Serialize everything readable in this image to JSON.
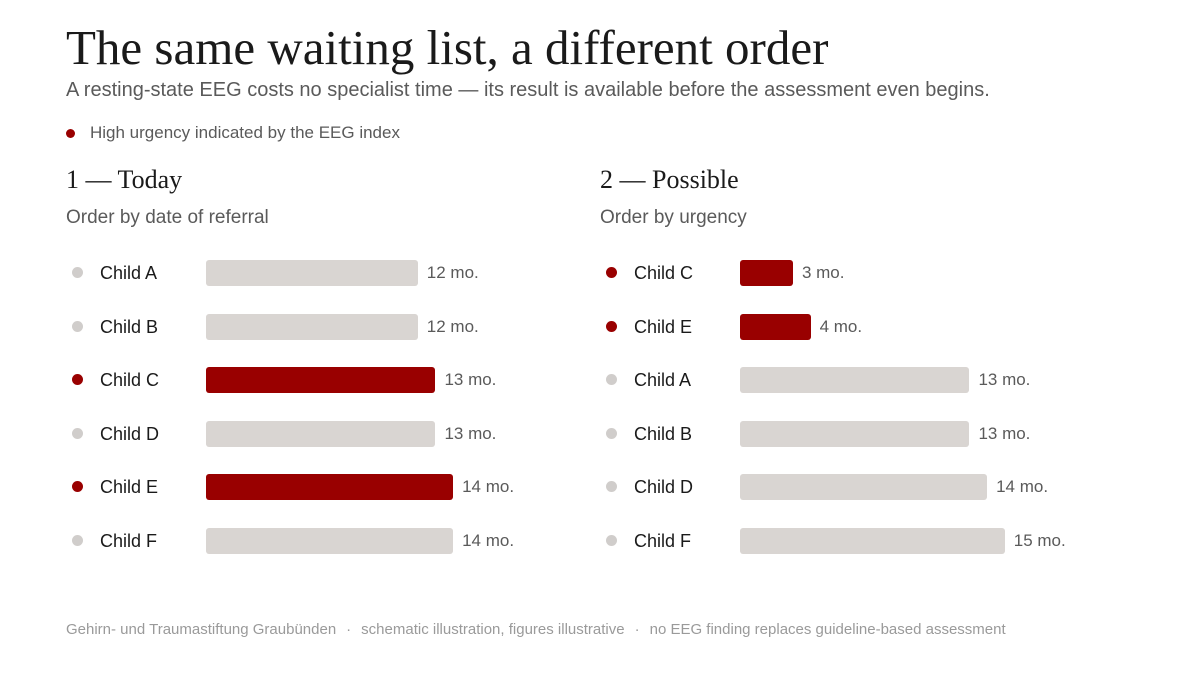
{
  "title": "The same waiting list, a different order",
  "subtitle": "A resting-state EEG costs no specialist time — its result is available before the assessment even begins.",
  "legend": {
    "label": "High urgency indicated by the EEG index",
    "color": "#990000"
  },
  "colors": {
    "urgent_bar": "#990000",
    "normal_bar": "#d9d5d2",
    "urgent_dot": "#990000",
    "normal_dot": "#d0cdcb"
  },
  "chart_data": [
    {
      "type": "bar",
      "orientation": "horizontal",
      "title": "1 — Today",
      "subtitle": "Order by date of referral",
      "unit": "mo.",
      "categories": [
        "Child A",
        "Child B",
        "Child C",
        "Child D",
        "Child E",
        "Child F"
      ],
      "values": [
        12,
        12,
        13,
        13,
        14,
        14
      ],
      "value_labels": [
        "12 mo.",
        "12 mo.",
        "13 mo.",
        "13 mo.",
        "14 mo.",
        "14 mo."
      ],
      "high_urgency": [
        false,
        false,
        true,
        false,
        true,
        false
      ]
    },
    {
      "type": "bar",
      "orientation": "horizontal",
      "title": "2 — Possible",
      "subtitle": "Order by urgency",
      "unit": "mo.",
      "categories": [
        "Child C",
        "Child E",
        "Child A",
        "Child B",
        "Child D",
        "Child F"
      ],
      "values": [
        3,
        4,
        13,
        13,
        14,
        15
      ],
      "value_labels": [
        "3 mo.",
        "4 mo.",
        "13 mo.",
        "13 mo.",
        "14 mo.",
        "15 mo."
      ],
      "high_urgency": [
        true,
        true,
        false,
        false,
        false,
        false
      ]
    }
  ],
  "footer": {
    "items": [
      "Gehirn- und Traumastiftung Graubünden",
      "schematic illustration, figures illustrative",
      "no EEG finding replaces guideline-based assessment"
    ],
    "separator": "·"
  }
}
